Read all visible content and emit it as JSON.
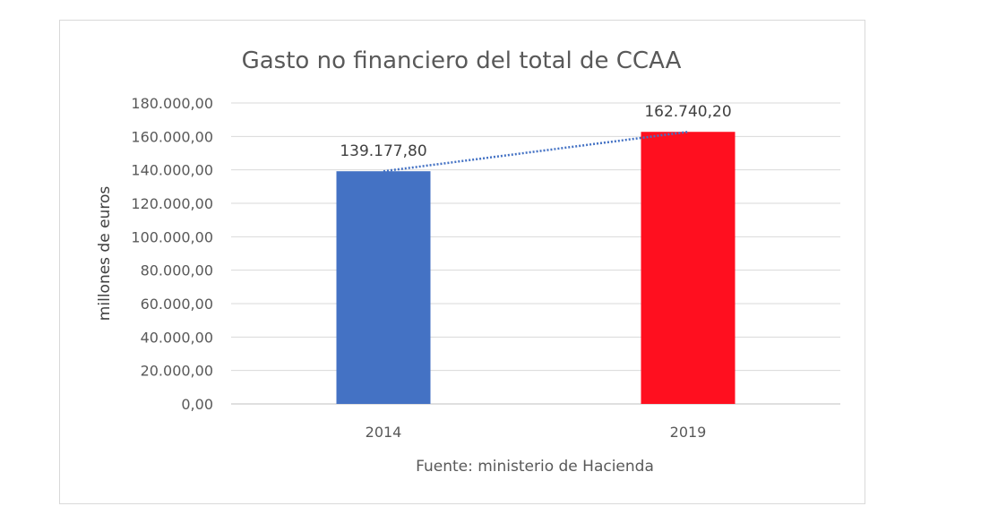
{
  "chart_data": {
    "type": "bar",
    "title": "Gasto no financiero del total de CCAA",
    "ylabel": "millones de euros",
    "xlabel": "",
    "note": "Fuente: ministerio de Hacienda",
    "categories": [
      "2014",
      "2019"
    ],
    "values": [
      139177.8,
      162740.2
    ],
    "value_labels": [
      "139.177,80",
      "162.740,20"
    ],
    "bar_colors": [
      "#4472C4",
      "#FF0F1F"
    ],
    "ylim": [
      0,
      180000
    ],
    "yticks": [
      0,
      20000,
      40000,
      60000,
      80000,
      100000,
      120000,
      140000,
      160000,
      180000
    ],
    "ytick_labels": [
      "0,00",
      "20.000,00",
      "40.000,00",
      "60.000,00",
      "80.000,00",
      "100.000,00",
      "120.000,00",
      "140.000,00",
      "160.000,00",
      "180.000,00"
    ],
    "grid": true,
    "trendline": {
      "type": "linear",
      "style": "dotted",
      "color": "#4472C4"
    },
    "legend": "none"
  }
}
